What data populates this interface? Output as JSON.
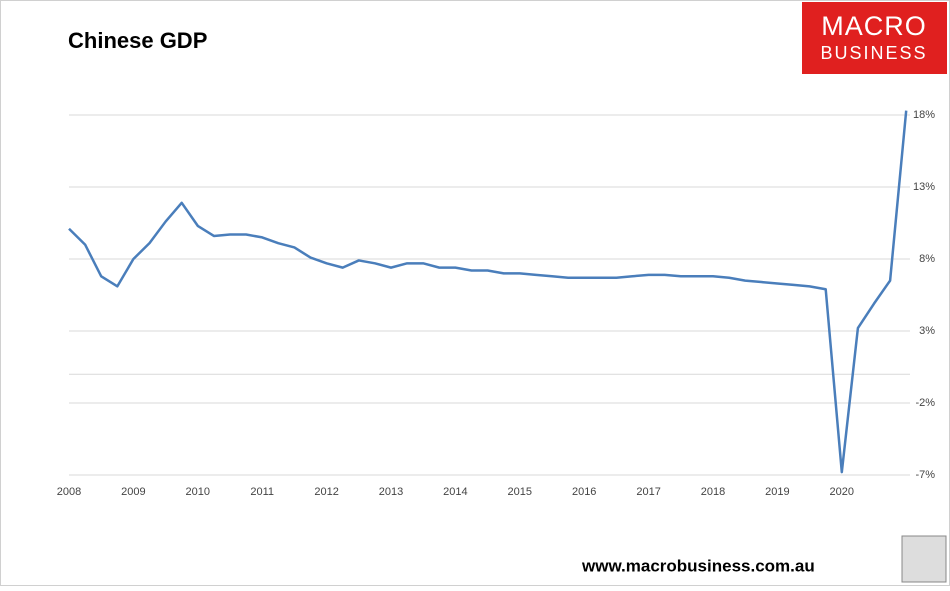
{
  "chart_data": {
    "type": "line",
    "title": "Chinese GDP",
    "brand": {
      "line1": "MACRO",
      "line2": "BUSINESS"
    },
    "footer": "www.macrobusiness.com.au",
    "categories": [
      "2008",
      null,
      null,
      null,
      "2009",
      null,
      null,
      null,
      "2010",
      null,
      null,
      null,
      "2011",
      null,
      null,
      null,
      "2012",
      null,
      null,
      null,
      "2013",
      null,
      null,
      null,
      "2014",
      null,
      null,
      null,
      "2015",
      null,
      null,
      null,
      "2016",
      null,
      null,
      null,
      "2017",
      null,
      null,
      null,
      "2018",
      null,
      null,
      null,
      "2019",
      null,
      null,
      null,
      "2020",
      null,
      null,
      null,
      null
    ],
    "series": [
      {
        "name": "Chinese GDP",
        "color": "#4a7ebb",
        "values": [
          10.1,
          9.0,
          6.8,
          6.1,
          8.0,
          9.1,
          10.6,
          11.9,
          10.3,
          9.6,
          9.7,
          9.7,
          9.5,
          9.1,
          8.8,
          8.1,
          7.7,
          7.4,
          7.9,
          7.7,
          7.4,
          7.7,
          7.7,
          7.4,
          7.4,
          7.2,
          7.2,
          7.0,
          7.0,
          6.9,
          6.8,
          6.7,
          6.7,
          6.7,
          6.7,
          6.8,
          6.9,
          6.9,
          6.8,
          6.8,
          6.8,
          6.7,
          6.5,
          6.4,
          6.3,
          6.2,
          6.1,
          5.9,
          -6.8,
          3.2,
          4.9,
          6.5,
          18.3
        ]
      }
    ],
    "ylim": [
      -7,
      18.3
    ],
    "yticks": [
      {
        "value": 18,
        "label": "18%"
      },
      {
        "value": 13,
        "label": "13%"
      },
      {
        "value": 8,
        "label": "8%"
      },
      {
        "value": 3,
        "label": "3%"
      },
      {
        "value": -2,
        "label": "-2%"
      },
      {
        "value": -7,
        "label": "-7%"
      }
    ],
    "grid": true
  }
}
